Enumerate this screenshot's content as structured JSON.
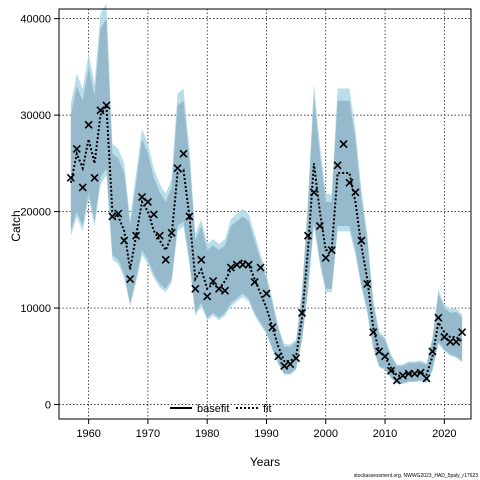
{
  "chart_data": {
    "type": "line",
    "xlabel": "Years",
    "ylabel": "Catch",
    "xlim": [
      1955,
      2024.5
    ],
    "ylim": [
      -1500,
      41000
    ],
    "xticks": [
      1960,
      1970,
      1980,
      1990,
      2000,
      2010,
      2020
    ],
    "yticks": [
      0,
      10000,
      20000,
      30000,
      40000
    ],
    "grid": true,
    "legend_position": "bottom-center",
    "legend": [
      {
        "name": "basefit",
        "style": "solid",
        "color": "#000000"
      },
      {
        "name": "fit",
        "style": "dotted",
        "color": "#000000"
      }
    ],
    "colors": {
      "band_light": "#add8e6",
      "band_dark": "#8fb4c7",
      "line": "#000000",
      "obs": "#000000"
    },
    "years": [
      1957,
      1958,
      1959,
      1960,
      1961,
      1962,
      1963,
      1964,
      1965,
      1966,
      1967,
      1968,
      1969,
      1970,
      1971,
      1972,
      1973,
      1974,
      1975,
      1976,
      1977,
      1978,
      1979,
      1980,
      1981,
      1982,
      1983,
      1984,
      1985,
      1986,
      1987,
      1988,
      1989,
      1990,
      1991,
      1992,
      1993,
      1994,
      1995,
      1996,
      1997,
      1998,
      1999,
      2000,
      2001,
      2002,
      2003,
      2004,
      2005,
      2006,
      2007,
      2008,
      2009,
      2010,
      2011,
      2012,
      2013,
      2014,
      2015,
      2016,
      2017,
      2018,
      2019,
      2020,
      2021,
      2022,
      2023
    ],
    "series": [
      {
        "name": "fit",
        "values": [
          23000,
          26000,
          24500,
          27500,
          25000,
          30000,
          31000,
          20000,
          19500,
          18000,
          14000,
          17500,
          21000,
          20000,
          18000,
          17000,
          16000,
          17500,
          24000,
          24300,
          19500,
          13000,
          14000,
          12000,
          12500,
          12000,
          12800,
          14000,
          14500,
          15000,
          14500,
          13000,
          11500,
          10000,
          8000,
          6000,
          4500,
          4500,
          5000,
          9000,
          16000,
          25000,
          20000,
          16000,
          16000,
          24000,
          24000,
          24000,
          21000,
          16500,
          13000,
          8000,
          5500,
          5000,
          3800,
          3000,
          3000,
          3200,
          3200,
          3300,
          3100,
          5000,
          8500,
          7500,
          7000,
          7000,
          6500
        ],
        "lower": [
          18000,
          20000,
          18500,
          22000,
          19000,
          23500,
          24500,
          15500,
          15000,
          13500,
          10500,
          13000,
          16000,
          15000,
          13500,
          12500,
          12000,
          13000,
          18500,
          19000,
          15000,
          9500,
          10500,
          9000,
          9500,
          9000,
          9500,
          10500,
          11000,
          11500,
          11000,
          9500,
          8500,
          7500,
          5800,
          4300,
          3200,
          3200,
          3700,
          6800,
          12000,
          19000,
          15000,
          12000,
          12000,
          18500,
          18500,
          18500,
          16000,
          12500,
          9800,
          6000,
          4000,
          3700,
          2800,
          2200,
          2200,
          2400,
          2400,
          2500,
          2300,
          3600,
          6500,
          5700,
          5200,
          5000,
          4500
        ],
        "upper": [
          30000,
          33000,
          31500,
          35000,
          32000,
          39000,
          40000,
          26000,
          25500,
          24000,
          18500,
          23000,
          27500,
          26000,
          23500,
          22000,
          21000,
          22500,
          31000,
          31500,
          25500,
          17000,
          18500,
          16000,
          16500,
          16000,
          16500,
          18500,
          19000,
          19500,
          19000,
          17000,
          15000,
          13000,
          10500,
          7800,
          6000,
          6000,
          6500,
          11500,
          20500,
          32000,
          26000,
          21000,
          21000,
          31500,
          31500,
          31500,
          27500,
          21500,
          17000,
          10500,
          7300,
          6700,
          5000,
          4000,
          4000,
          4300,
          4300,
          4400,
          4100,
          6700,
          11500,
          10000,
          9500,
          9600,
          9000
        ]
      },
      {
        "name": "observed",
        "values": [
          23500,
          26500,
          22500,
          29000,
          23500,
          30500,
          31000,
          19500,
          19800,
          17000,
          13000,
          17500,
          21500,
          21000,
          19700,
          17500,
          15000,
          17800,
          24500,
          26000,
          19500,
          12000,
          15000,
          11200,
          12800,
          12000,
          11800,
          14200,
          14500,
          14500,
          14500,
          12700,
          14200,
          11500,
          8000,
          5000,
          4000,
          4200,
          4800,
          9500,
          17500,
          22000,
          18500,
          15200,
          16000,
          24800,
          27000,
          23000,
          22000,
          17000,
          12500,
          7500,
          5500,
          5000,
          3500,
          2500,
          3000,
          3200,
          3200,
          3300,
          2700,
          5500,
          9000,
          7000,
          6500,
          6500,
          7500
        ]
      }
    ],
    "credit": "stockassessment.org, NWWG2023_HAD_5paly_r17623"
  }
}
